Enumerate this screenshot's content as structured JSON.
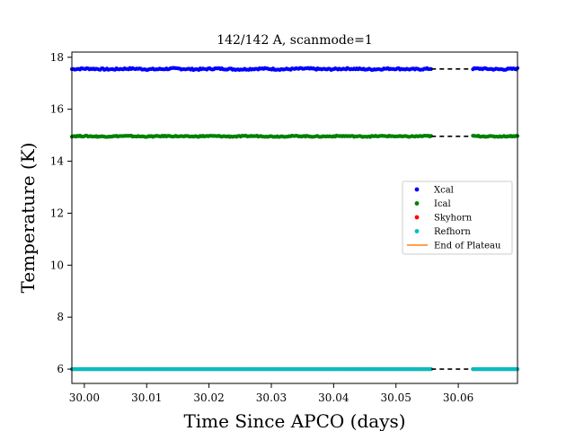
{
  "chart_data": {
    "type": "scatter",
    "title": "142/142 A, scanmode=1",
    "xlabel": "Time Since APCO (days)",
    "ylabel": "Temperature (K)",
    "xlim": [
      29.998,
      30.0695
    ],
    "ylim": [
      5.45,
      18.2
    ],
    "xticks": [
      30.0,
      30.01,
      30.02,
      30.03,
      30.04,
      30.05,
      30.06
    ],
    "xtick_labels": [
      "30.00",
      "30.01",
      "30.02",
      "30.03",
      "30.04",
      "30.05",
      "30.06"
    ],
    "yticks": [
      6,
      8,
      10,
      12,
      14,
      16,
      18
    ],
    "ytick_labels": [
      "6",
      "8",
      "10",
      "12",
      "14",
      "16",
      "18"
    ],
    "grid": false,
    "legend_position": "center-right",
    "gap": {
      "start": 30.0557,
      "end": 30.0622
    },
    "series": [
      {
        "name": "Xcal",
        "color": "#0000ff",
        "marker": "point",
        "level": 17.55,
        "jitter": 0.03
      },
      {
        "name": "Ical",
        "color": "#008000",
        "marker": "point",
        "level": 14.96,
        "jitter": 0.02
      },
      {
        "name": "Skyhorn",
        "color": "#ff0000",
        "marker": "point",
        "level": 6.0,
        "jitter": 0.0
      },
      {
        "name": "Refhorn",
        "color": "#00bfbf",
        "marker": "point",
        "level": 6.0,
        "jitter": 0.0
      }
    ],
    "gap_lines": [
      {
        "level": 17.55,
        "color": "#000000",
        "style": "dashed"
      },
      {
        "level": 14.96,
        "color": "#000000",
        "style": "dashed"
      },
      {
        "level": 6.0,
        "color": "#000000",
        "style": "dashed"
      }
    ],
    "reference_line": {
      "name": "End of Plateau",
      "color": "#ff7f0e"
    }
  }
}
